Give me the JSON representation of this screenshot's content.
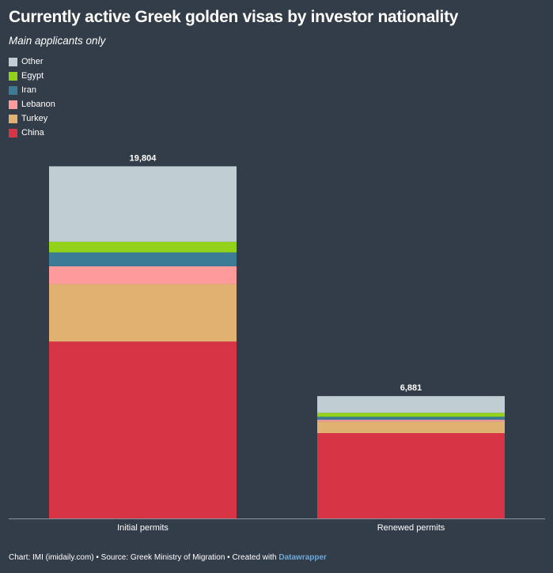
{
  "title": "Currently active Greek golden visas by investor nationality",
  "subtitle": "Main applicants only",
  "footer": {
    "chart_by": "Chart: IMI (imidaily.com)",
    "sep1": " • ",
    "source": "Source: Greek Ministry of Migration",
    "sep2": " • ",
    "created_with": "Created with ",
    "tool": "Datawrapper"
  },
  "colors": {
    "background": "#333c49",
    "Other": "#c0ced3",
    "Egypt": "#92d21a",
    "Iran": "#3c7b96",
    "Lebanon": "#fd9a9c",
    "Turkey": "#e1b172",
    "China": "#d73545",
    "axis": "#8a929c"
  },
  "legend": [
    {
      "label": "Other",
      "color": "#c0ced3"
    },
    {
      "label": "Egypt",
      "color": "#92d21a"
    },
    {
      "label": "Iran",
      "color": "#3c7b96"
    },
    {
      "label": "Lebanon",
      "color": "#fd9a9c"
    },
    {
      "label": "Turkey",
      "color": "#e1b172"
    },
    {
      "label": "China",
      "color": "#d73545"
    }
  ],
  "chart_data": {
    "type": "bar",
    "stacked": true,
    "title": "Currently active Greek golden visas by investor nationality",
    "subtitle": "Main applicants only",
    "categories": [
      "Initial permits",
      "Renewed permits"
    ],
    "totals": [
      19804,
      6881
    ],
    "total_labels": [
      "19,804",
      "6,881"
    ],
    "series": [
      {
        "name": "China",
        "values": [
          9950,
          4800
        ]
      },
      {
        "name": "Turkey",
        "values": [
          3230,
          650
        ]
      },
      {
        "name": "Lebanon",
        "values": [
          1000,
          100
        ]
      },
      {
        "name": "Iran",
        "values": [
          780,
          170
        ]
      },
      {
        "name": "Egypt",
        "values": [
          600,
          220
        ]
      },
      {
        "name": "Other",
        "values": [
          4244,
          941
        ]
      }
    ],
    "ylim": [
      0,
      20800
    ],
    "xlabel": "",
    "ylabel": "",
    "legend_position": "top-left"
  }
}
